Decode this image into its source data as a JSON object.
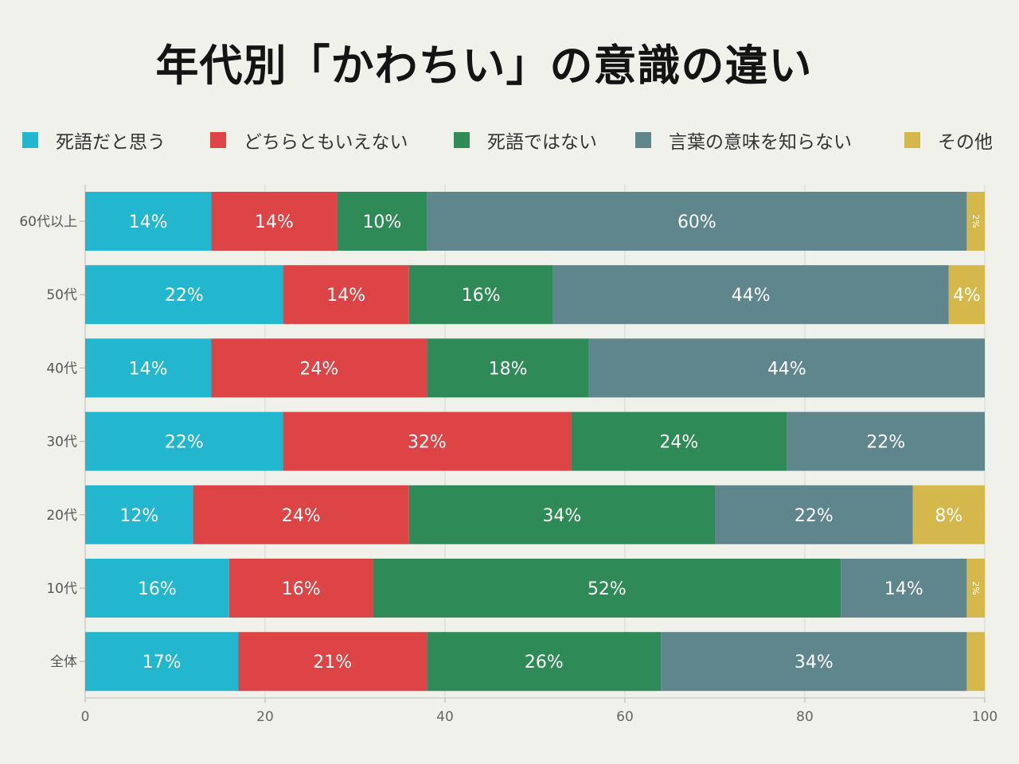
{
  "title": "年代別「かわちい」の意識の違い",
  "chart_data": {
    "type": "bar",
    "orientation": "horizontal",
    "stacked": true,
    "title": "年代別「かわちい」の意識の違い",
    "categories": [
      "60代以上",
      "50代",
      "40代",
      "30代",
      "20代",
      "10代",
      "全体"
    ],
    "series": [
      {
        "name": "死語だと思う",
        "color": "#22b6cf",
        "values": [
          14,
          22,
          14,
          22,
          12,
          16,
          17
        ]
      },
      {
        "name": "どちらともいえない",
        "color": "#dc4446",
        "values": [
          14,
          14,
          24,
          32,
          24,
          16,
          21
        ]
      },
      {
        "name": "死語ではない",
        "color": "#2e8a57",
        "values": [
          10,
          16,
          18,
          24,
          34,
          52,
          26
        ]
      },
      {
        "name": "言葉の意味を知らない",
        "color": "#5f858d",
        "values": [
          60,
          44,
          44,
          22,
          22,
          14,
          34
        ]
      },
      {
        "name": "その他",
        "color": "#d4b84c",
        "values": [
          2,
          4,
          0,
          0,
          8,
          2,
          2
        ]
      }
    ],
    "data_labels": [
      [
        "14%",
        "14%",
        "10%",
        "60%",
        "2%"
      ],
      [
        "22%",
        "14%",
        "16%",
        "44%",
        "4%"
      ],
      [
        "14%",
        "24%",
        "18%",
        "44%",
        ""
      ],
      [
        "22%",
        "32%",
        "24%",
        "22%",
        ""
      ],
      [
        "12%",
        "24%",
        "34%",
        "22%",
        "8%"
      ],
      [
        "16%",
        "16%",
        "52%",
        "14%",
        "2%"
      ],
      [
        "17%",
        "21%",
        "26%",
        "34%",
        ""
      ]
    ],
    "xlim": [
      0,
      100
    ],
    "xticks": [
      0,
      20,
      40,
      60,
      80,
      100
    ],
    "grid": true,
    "legend_position": "top"
  }
}
